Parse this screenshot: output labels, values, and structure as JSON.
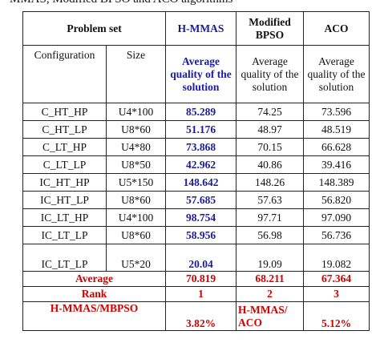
{
  "caption": "MMAS, Modified BPSO and ACO algorithms",
  "header": {
    "problem_set": "Problem set",
    "hmmas": "H-MMAS",
    "mbpso": "Modified BPSO",
    "aco": "ACO"
  },
  "subheader": {
    "config": "Configuration",
    "size": "Size",
    "hmmas": "Average quality of the solution",
    "mbpso": "Average quality of the solution",
    "aco": "Average quality of the solution"
  },
  "rows": [
    {
      "config": "C_HT_HP",
      "size": "U4*100",
      "hmmas": "85.289",
      "mbpso": "74.25",
      "aco": "73.596"
    },
    {
      "config": "C_HT_LP",
      "size": "U8*60",
      "hmmas": "51.176",
      "mbpso": "48.97",
      "aco": "48.519"
    },
    {
      "config": "C_LT_HP",
      "size": "U4*80",
      "hmmas": "73.868",
      "mbpso": "70.15",
      "aco": "66.628"
    },
    {
      "config": "C_LT_LP",
      "size": "U8*50",
      "hmmas": "42.962",
      "mbpso": "40.86",
      "aco": "39.416"
    },
    {
      "config": "IC_HT_HP",
      "size": "U5*150",
      "hmmas": "148.642",
      "mbpso": "148.26",
      "aco": "148.389"
    },
    {
      "config": "IC_HT_LP",
      "size": "U8*60",
      "hmmas": "57.685",
      "mbpso": "57.63",
      "aco": "56.820"
    },
    {
      "config": "IC_LT_HP",
      "size": "U4*100",
      "hmmas": "98.754",
      "mbpso": "97.71",
      "aco": "97.090"
    },
    {
      "config": "IC_LT_LP",
      "size": "U8*60",
      "hmmas": "58.956",
      "mbpso": "56.98",
      "aco": "56.736"
    },
    {
      "config": "IC_LT_LP",
      "size": "U5*20",
      "hmmas": "20.04",
      "mbpso": "19.09",
      "aco": "19.082"
    }
  ],
  "average": {
    "label": "Average",
    "hmmas": "70.819",
    "mbpso": "68.211",
    "aco": "67.364"
  },
  "rank": {
    "label": "Rank",
    "hmmas": "1",
    "mbpso": "2",
    "aco": "3"
  },
  "comparison": {
    "label1": "H-MMAS/MBPSO",
    "value1": "3.82%",
    "label2": "H-MMAS/ ACO",
    "value2": "5.12%"
  },
  "colors": {
    "blue": "#1a1aa6",
    "red": "#d00000"
  }
}
